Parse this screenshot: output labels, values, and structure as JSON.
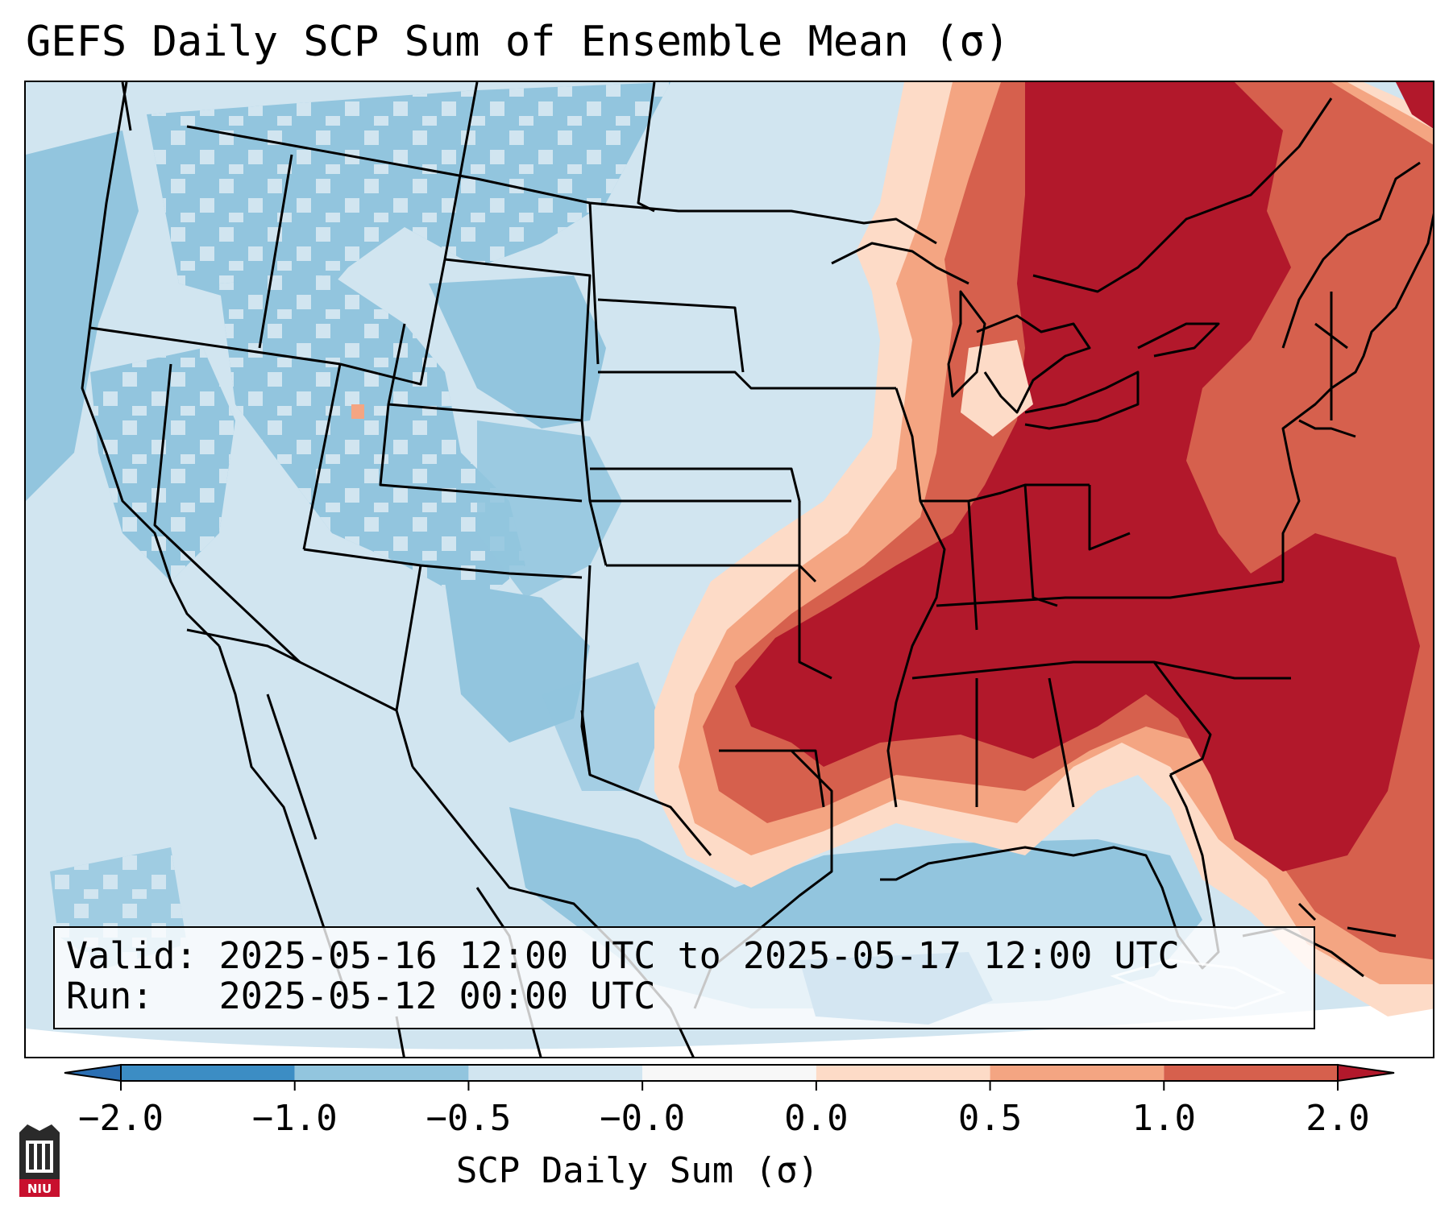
{
  "title": "GEFS Daily SCP Sum of Ensemble Mean (σ)",
  "info": {
    "valid_label": "Valid:",
    "valid_value": "2025-05-16 12:00 UTC to 2025-05-17 12:00 UTC",
    "run_label": "Run:",
    "run_value": "2025-05-12 00:00 UTC"
  },
  "colorbar": {
    "label": "SCP Daily Sum (σ)",
    "ticks": [
      "−2.0",
      "−1.0",
      "−0.5",
      "−0.0",
      "0.0",
      "0.5",
      "1.0",
      "2.0"
    ],
    "bins": [
      {
        "color": "#2b6fb3"
      },
      {
        "color": "#3c8dc4"
      },
      {
        "color": "#92c5de"
      },
      {
        "color": "#d1e5f0"
      },
      {
        "color": "#f7f7f7"
      },
      {
        "color": "#fddbc7"
      },
      {
        "color": "#f4a582"
      },
      {
        "color": "#d6604d"
      },
      {
        "color": "#b2182b"
      }
    ]
  },
  "logo": {
    "text": "NIU"
  }
}
